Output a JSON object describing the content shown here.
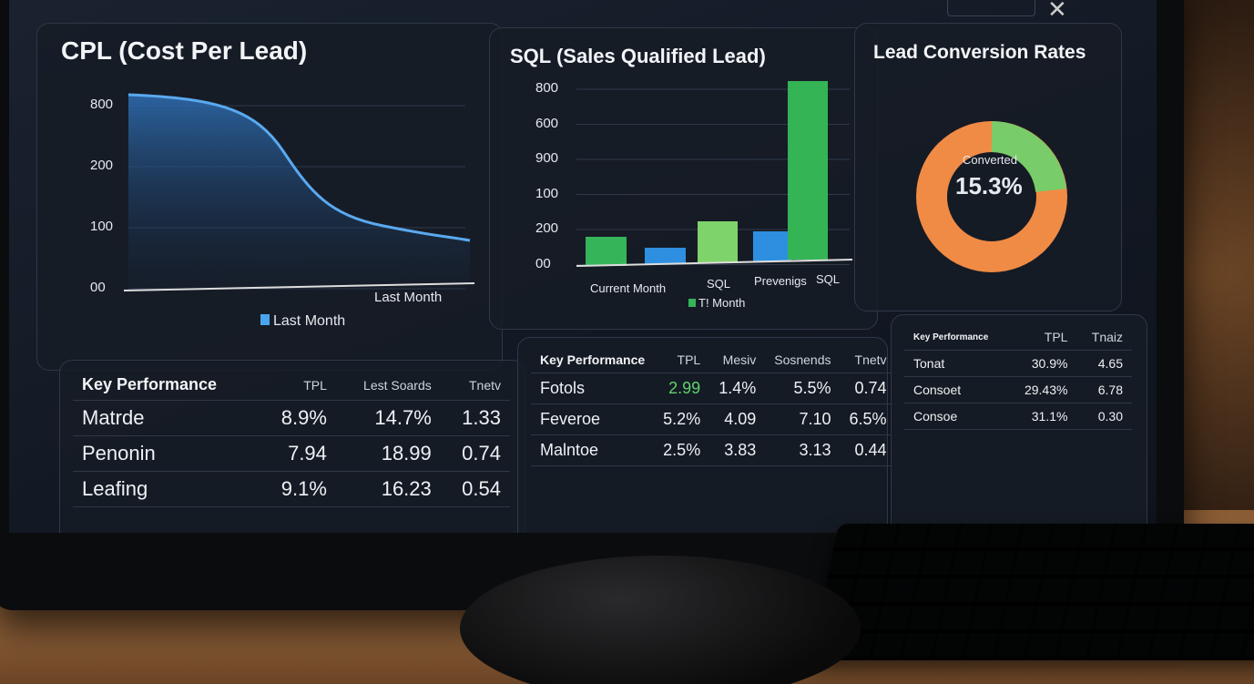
{
  "cpl_panel": {
    "title": "CPL (Cost Per Lead)",
    "y_labels": [
      "800",
      "200",
      "100",
      "00"
    ],
    "x_label": "Last Month",
    "legend": "Last Month"
  },
  "sql_panel": {
    "title": "SQL (Sales Qualified Lead)",
    "y_labels": [
      "800",
      "600",
      "900",
      "100",
      "200",
      "00"
    ],
    "x_labels": [
      "Current Month",
      "SQL",
      "Prevenigs",
      "SQL"
    ],
    "legend": "T! Month"
  },
  "conversion_panel": {
    "title": "Lead Conversion Rates",
    "center_label": "Converted",
    "center_value": "15.3%"
  },
  "tables": [
    {
      "title": "Key Performance",
      "columns": [
        "TPL",
        "Lest Soards",
        "Tnetv"
      ],
      "rows": [
        [
          "Matrde",
          "8.9%",
          "14.7%",
          "1.33"
        ],
        [
          "Penonin",
          "7.94",
          "18.99",
          "0.74"
        ],
        [
          "Leafing",
          "9.1%",
          "16.23",
          "0.54"
        ]
      ]
    },
    {
      "title": "Key Performance",
      "columns": [
        "TPL",
        "Mesiv",
        "Sosnends",
        "Tnetv"
      ],
      "rows": [
        [
          "Fotols",
          "2.99",
          "1.4%",
          "5.5%",
          "0.74"
        ],
        [
          "Feveroe",
          "5.2%",
          "4.09",
          "7.10",
          "6.5%"
        ],
        [
          "Malntoe",
          "2.5%",
          "3.83",
          "3.13",
          "0.44"
        ]
      ]
    },
    {
      "title": "Key Performance",
      "columns": [
        "TPL",
        "Tnaiz"
      ],
      "rows": [
        [
          "Tonat",
          "30.9%",
          "4.65"
        ],
        [
          "Consoet",
          "29.43%",
          "6.78"
        ],
        [
          "Consoe",
          "31.1%",
          "0.30"
        ]
      ]
    }
  ]
}
